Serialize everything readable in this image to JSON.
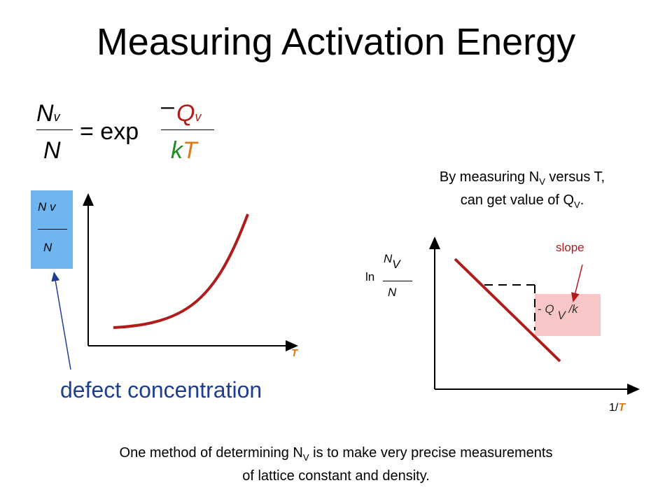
{
  "title": "Measuring Activation Energy",
  "equation": {
    "lhs_num": "N",
    "lhs_num_sub": "v",
    "lhs_den": "N",
    "equals_exp": "= exp",
    "minus": "–",
    "rhs_num": "Q",
    "rhs_num_sub": "v",
    "rhs_den_k": "k",
    "rhs_den_T": "T",
    "bracket_glyph": "",
    "colors": {
      "Q": "#b01c1c",
      "k": "#1e8c1e",
      "T": "#e07a10"
    }
  },
  "left_graph": {
    "ylabel_num": "N",
    "ylabel_num_sub": "v",
    "ylabel_den": "N",
    "xlabel": "T",
    "annotation": "defect concentration",
    "box_color": "#6fb5ef",
    "curve_color": "#b01c1c"
  },
  "right_text": {
    "line1_pre": "By measuring N",
    "line1_sub": "V",
    "line1_post": " versus T,",
    "line2_pre": "can get value of Q",
    "line2_sub": "V",
    "line2_post": "."
  },
  "right_graph": {
    "ylabel_ln": "ln",
    "ylabel_num": "N",
    "ylabel_num_sub": "V",
    "ylabel_den": "N",
    "xlabel_pre": "1/",
    "xlabel_T": "T",
    "slope_label": "slope",
    "slope_value_minus": "-",
    "slope_value_Q": "Q",
    "slope_value_sub": "V",
    "slope_value_post": "/k",
    "slope_box_color": "#f8c6c6",
    "line_color": "#b01c1c"
  },
  "footer": {
    "line1_pre": "One method of determining N",
    "line1_sub": "V",
    "line1_post": " is to make very precise measurements",
    "line2": "of lattice constant and density."
  }
}
